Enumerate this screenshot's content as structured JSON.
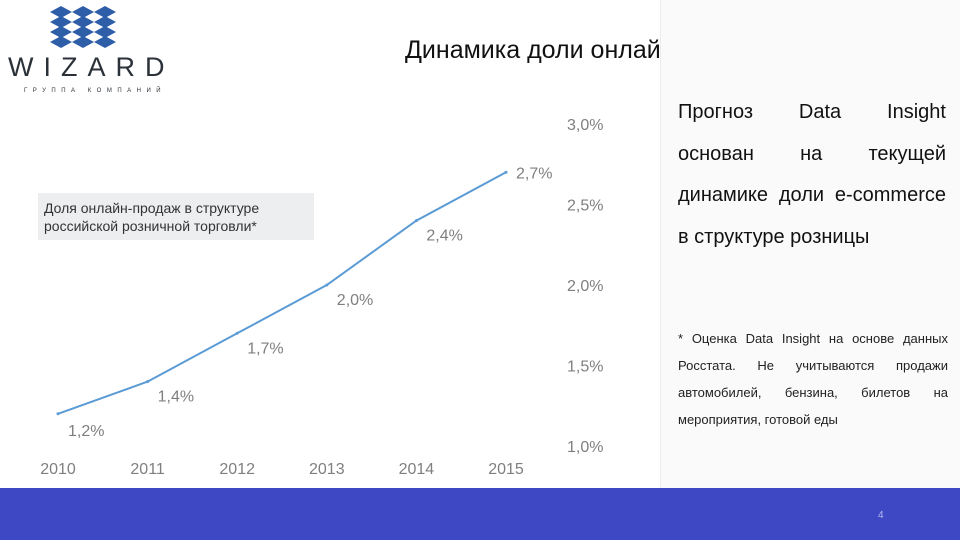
{
  "header": {
    "logo_text": "WIZARD",
    "logo_subtext": "ГРУППА КОМПАНИЙ",
    "title": "Динамика доли онлайн-продаж"
  },
  "colors": {
    "line": "#5b9bd5",
    "bar": "#3e48c4",
    "logo": "#2f5ea8"
  },
  "chart_data": {
    "type": "line",
    "legend_label": "Доля онлайн-продаж в структуре российской розничной торговли*",
    "legend_position": "left",
    "categories": [
      "2010",
      "2011",
      "2012",
      "2013",
      "2014",
      "2015"
    ],
    "series": [
      {
        "values": [
          1.2,
          1.4,
          1.7,
          2.0,
          2.4,
          2.7
        ],
        "data_labels": [
          "1,2%",
          "1,4%",
          "1,7%",
          "2,0%",
          "2,4%",
          "2,7%"
        ]
      }
    ],
    "y_axis": {
      "ticks": [
        3.0,
        2.5,
        2.0,
        1.5,
        1.0
      ],
      "tick_labels": [
        "3,0%",
        "2,5%",
        "2,0%",
        "1,5%",
        "1,0%"
      ],
      "position": "right"
    },
    "ylim": [
      1.0,
      3.0
    ],
    "grid": false
  },
  "note": {
    "main": "Прогноз Data Insight основан на текущей динамике доли e-commerce в структуре розницы",
    "footnote": "* Оценка Data Insight на основе данных Росстата. Не учитываются продажи автомобилей, бензина, билетов на мероприятия, готовой еды"
  },
  "footer": {
    "page_number": "4"
  }
}
